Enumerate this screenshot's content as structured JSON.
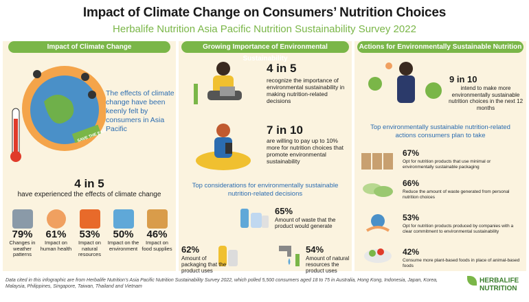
{
  "header": {
    "title": "Impact of Climate Change on Consumers’ Nutrition Choices",
    "subtitle": "Herbalife Nutrition Asia Pacific Nutrition Sustainability Survey 2022"
  },
  "col1": {
    "pill": "Impact of Climate Change",
    "effects_text": "The effects of climate change have been keenly felt by consumers in Asia Pacific",
    "banner_text": "SAVE THE EARTH",
    "headline_num": "4 in 5",
    "headline_text": "have experienced the effects of climate change",
    "stats": [
      {
        "num": "79%",
        "label": "Changes in weather patterns"
      },
      {
        "num": "61%",
        "label": "Impact on human health"
      },
      {
        "num": "53%",
        "label": "Impact on natural resources"
      },
      {
        "num": "50%",
        "label": "Impact on the environment"
      },
      {
        "num": "46%",
        "label": "Impact on food supplies"
      }
    ]
  },
  "col2": {
    "pill": "Growing Importance of Environmental Sustainability",
    "stat1_num": "4 in 5",
    "stat1_text": "recognize the importance of environmental sustainability in making nutrition-related decisions",
    "stat2_num": "7 in 10",
    "stat2_text": "are willing to pay up to 10% more for nutrition choices that promote environmental sustainability",
    "considerations_title": "Top considerations for environmentally sustainable nutrition-related decisions",
    "c1_num": "65%",
    "c1_text": "Amount of waste that the product would generate",
    "c2_num": "62%",
    "c2_text": "Amount of packaging that the product uses",
    "c3_num": "54%",
    "c3_text": "Amount of natural resources the product uses"
  },
  "col3": {
    "pill": "Actions for Environmentally Sustainable Nutrition",
    "intend_num": "9 in 10",
    "intend_text": "intend to make more environmentally sustainable nutrition choices in the next 12 months",
    "actions_title": "Top environmentally sustainable nutrition-related actions consumers plan to take",
    "actions": [
      {
        "num": "67%",
        "label": "Opt for nutrition products that use minimal or environmentally sustainable packaging"
      },
      {
        "num": "66%",
        "label": "Reduce the amount of waste generated from personal nutrition choices"
      },
      {
        "num": "53%",
        "label": "Opt for nutrition products produced by companies with a clear commitment to environmental sustainability"
      },
      {
        "num": "42%",
        "label": "Consume more plant-based foods in place of animal-based foods"
      }
    ]
  },
  "footer": {
    "text": "Data cited in this infographic are from Herbalife Nutrition’s Asia Pacific Nutrition Sustainability Survey 2022, which polled 5,500 consumers aged 18 to 75 in Australia, Hong Kong, Indonesia, Japan, Korea, Malaysia, Philippines, Singapore, Taiwan, Thailand and Vietnam",
    "logo_line1": "HERBALIFE",
    "logo_line2": "NUTRITION"
  },
  "colors": {
    "green": "#7ab648",
    "blue": "#2b6cb0",
    "cream": "#fbf3df"
  }
}
